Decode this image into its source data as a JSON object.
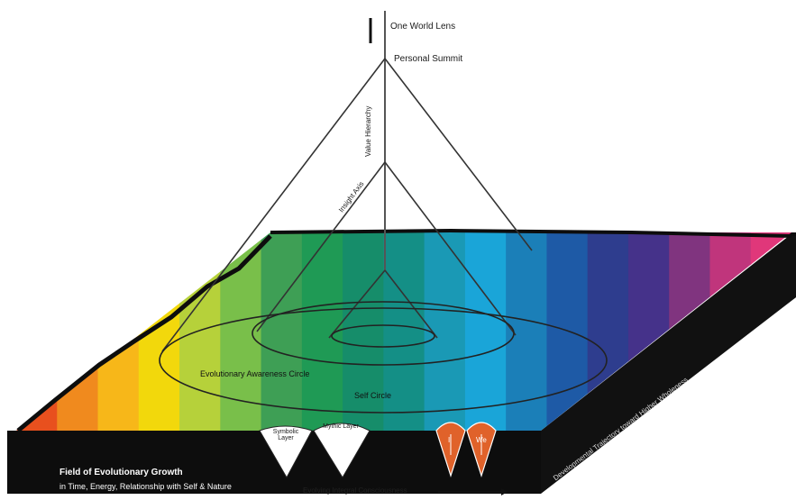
{
  "labels": {
    "top": "One World Lens",
    "apex": "Personal Summit",
    "vertical_axis": "Value Hierarchy",
    "slant": "Insight Axis",
    "ellipse_outer_text": "Evolutionary Awareness Circle",
    "ellipse_center_text": "Self Circle",
    "cone_left_1": "Symbolic Layer",
    "cone_left_2": "Mythic Layer",
    "cone_right_1": "I",
    "cone_right_2": "We",
    "bottom_title_line1": "Field of Evolutionary Growth",
    "bottom_title_line2": "in Time, Energy, Relationship with Self & Nature",
    "bottom_arrow_text": "Evolving Integral Consciousness",
    "right_side_text": "Developmental Trajectory toward Higher Wholeness"
  },
  "colors": {
    "spectrum": [
      "#e8501e",
      "#f08a1e",
      "#f7b719",
      "#f2d80c",
      "#b6d13a",
      "#79bf4a",
      "#3e9f55",
      "#1f9a55",
      "#168d6a",
      "#148f86",
      "#1a99b5",
      "#1aa5d8",
      "#1b7fb8",
      "#1e5aa6",
      "#2e3d8e",
      "#45328a",
      "#80347f",
      "#c0357c",
      "#e0377a"
    ],
    "slab_side": "#0d0d0d",
    "lines": "#333333",
    "orange_cone": "#e0622a",
    "white_cone": "#ffffff"
  }
}
